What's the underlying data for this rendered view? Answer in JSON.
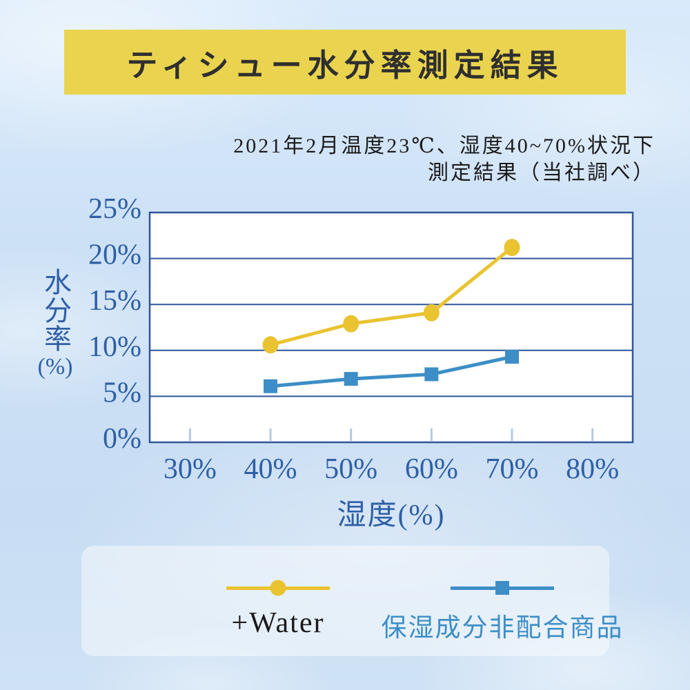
{
  "title": {
    "text": "ティシュー水分率測定結果",
    "banner_color": "#EAD44F",
    "text_color": "#2f2f2f"
  },
  "subtitle": {
    "line1": "2021年2月温度23℃、湿度40~70%状況下",
    "line2": "測定結果（当社調べ）"
  },
  "chart_data": {
    "type": "line",
    "xlabel": "湿度(%)",
    "ylabel": "水分率(%)",
    "ylabel_kanji": "水分率",
    "ylabel_unit": "(%)",
    "categories": [
      "30%",
      "40%",
      "50%",
      "60%",
      "70%",
      "80%"
    ],
    "y_ticks": [
      "0%",
      "5%",
      "10%",
      "15%",
      "20%",
      "25%"
    ],
    "ylim": [
      0,
      25
    ],
    "y_step": 5,
    "grid": true,
    "legend_position": "bottom",
    "series": [
      {
        "name": "+Water",
        "color": "#E9C330",
        "marker": "circle",
        "x": [
          "40%",
          "50%",
          "60%",
          "70%"
        ],
        "values": [
          10.6,
          12.9,
          14.1,
          21.2
        ]
      },
      {
        "name": "保湿成分非配合商品",
        "color": "#3D8EC6",
        "marker": "square",
        "x": [
          "40%",
          "50%",
          "60%",
          "70%"
        ],
        "values": [
          6.1,
          6.9,
          7.4,
          9.3
        ]
      }
    ]
  },
  "legend": {
    "items": [
      {
        "label": "+Water",
        "color": "#E9C330",
        "marker": "circle",
        "label_color": "#1a1a1a"
      },
      {
        "label": "保湿成分非配合商品",
        "color": "#3D8EC6",
        "marker": "square",
        "label_color": "#3D8EC6"
      }
    ]
  },
  "colors": {
    "page_background": "#cde1f6",
    "plot_background": "#ffffff",
    "grid": "#2F5597",
    "axis_text": "#2E5FA6",
    "category_tick": "#b7c8e0",
    "legend_panel": "rgba(255,255,255,0.45)"
  }
}
